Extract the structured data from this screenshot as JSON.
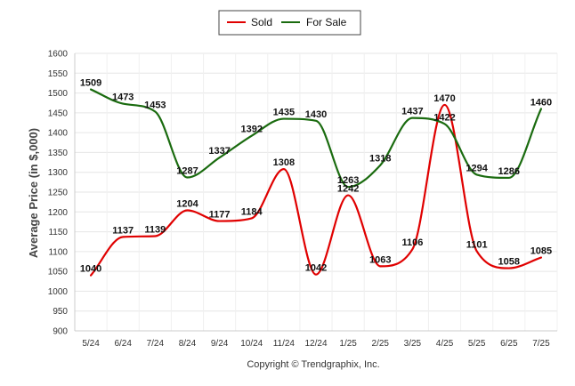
{
  "chart_data": {
    "type": "line",
    "categories": [
      "5/24",
      "6/24",
      "7/24",
      "8/24",
      "9/24",
      "10/24",
      "11/24",
      "12/24",
      "1/25",
      "2/25",
      "3/25",
      "4/25",
      "5/25",
      "6/25",
      "7/25"
    ],
    "series": [
      {
        "name": "Sold",
        "color": "#e00000",
        "values": [
          1040,
          1137,
          1139,
          1204,
          1177,
          1184,
          1308,
          1042,
          1242,
          1063,
          1106,
          1470,
          1101,
          1058,
          1085
        ]
      },
      {
        "name": "For Sale",
        "color": "#1a6b0f",
        "values": [
          1509,
          1473,
          1453,
          1287,
          1337,
          1392,
          1435,
          1430,
          1263,
          1318,
          1437,
          1422,
          1294,
          1286,
          1460
        ]
      }
    ],
    "ylabel": "Average Price (in $,000)",
    "ylim": [
      900,
      1600
    ],
    "yticks": [
      900,
      950,
      1000,
      1050,
      1100,
      1150,
      1200,
      1250,
      1300,
      1350,
      1400,
      1450,
      1500,
      1550,
      1600
    ],
    "grid": true,
    "legend_position": "top-center",
    "footer": "Copyright © Trendgraphix, Inc."
  }
}
